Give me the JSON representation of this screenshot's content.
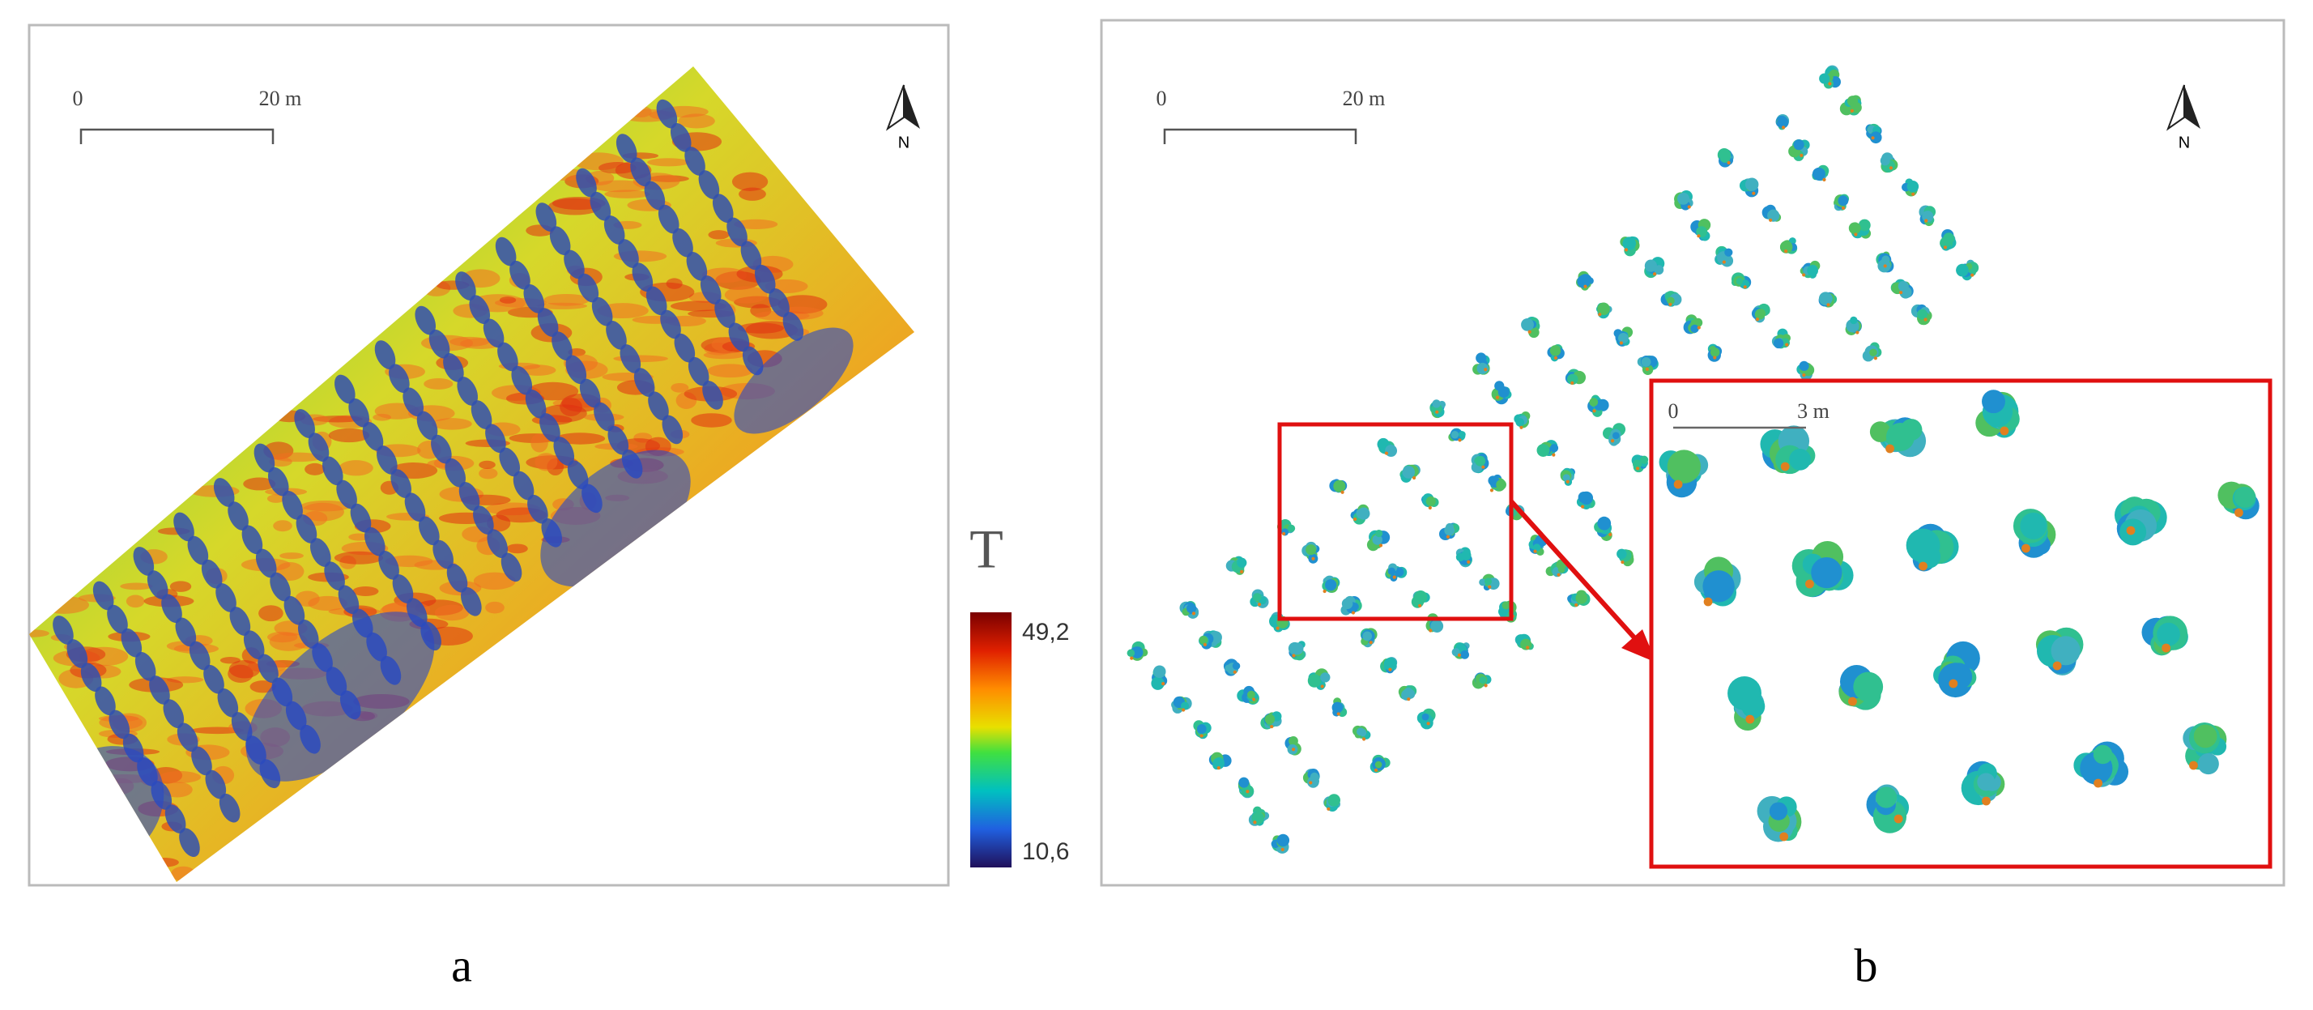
{
  "panel_a": {
    "scale_bar": {
      "start": "0",
      "end": "20 m"
    },
    "north": "N",
    "label": "a"
  },
  "legend": {
    "title": "T",
    "max": "49,2",
    "min": "10,6"
  },
  "panel_b": {
    "scale_bar": {
      "start": "0",
      "end": "20 m"
    },
    "north": "N",
    "label": "b",
    "inset": {
      "scale_bar": {
        "start": "0",
        "end": "3 m"
      }
    }
  }
}
